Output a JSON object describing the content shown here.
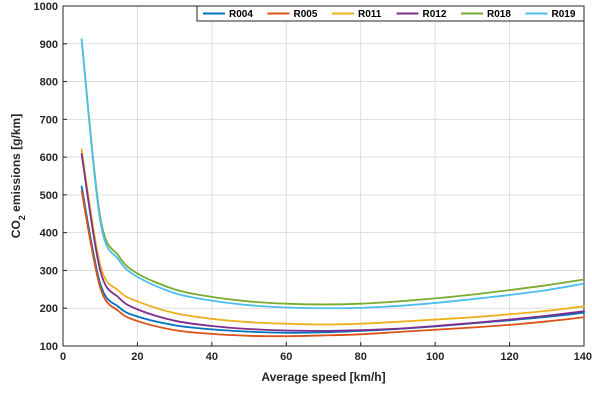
{
  "chart_data": {
    "type": "line",
    "title": "",
    "xlabel": "Average speed [km/h]",
    "ylabel_parts": {
      "pre": "CO",
      "sub": "2",
      "post": " emissions [g/km]"
    },
    "xlim": [
      0,
      140
    ],
    "ylim": [
      100,
      1000
    ],
    "xticks": [
      0,
      20,
      40,
      60,
      80,
      100,
      120,
      140
    ],
    "yticks": [
      100,
      200,
      300,
      400,
      500,
      600,
      700,
      800,
      900,
      1000
    ],
    "grid": true,
    "legend": "top-right",
    "x": [
      5,
      10,
      15,
      20,
      30,
      40,
      50,
      60,
      70,
      80,
      90,
      100,
      110,
      120,
      130,
      140
    ],
    "series": [
      {
        "name": "R004",
        "color": "#0072bd",
        "values": [
          522,
          265,
          203,
          178,
          155,
          144,
          138,
          135,
          136,
          140,
          145,
          152,
          160,
          168,
          177,
          188
        ]
      },
      {
        "name": "R005",
        "color": "#d95319",
        "values": [
          510,
          255,
          192,
          166,
          142,
          132,
          127,
          126,
          128,
          131,
          137,
          143,
          149,
          156,
          165,
          176
        ]
      },
      {
        "name": "R011",
        "color": "#edb120",
        "values": [
          620,
          315,
          246,
          218,
          187,
          172,
          163,
          159,
          157,
          159,
          164,
          170,
          176,
          184,
          193,
          205
        ]
      },
      {
        "name": "R012",
        "color": "#7e2f8e",
        "values": [
          608,
          300,
          228,
          197,
          167,
          153,
          145,
          141,
          140,
          142,
          146,
          153,
          161,
          170,
          180,
          192
        ]
      },
      {
        "name": "R018",
        "color": "#77ac30",
        "values": [
          912,
          442,
          338,
          292,
          250,
          230,
          218,
          212,
          210,
          212,
          218,
          226,
          236,
          248,
          261,
          276
        ]
      },
      {
        "name": "R019",
        "color": "#4dbeee",
        "values": [
          912,
          432,
          328,
          283,
          240,
          220,
          208,
          202,
          200,
          201,
          206,
          214,
          224,
          235,
          248,
          265
        ]
      }
    ]
  }
}
